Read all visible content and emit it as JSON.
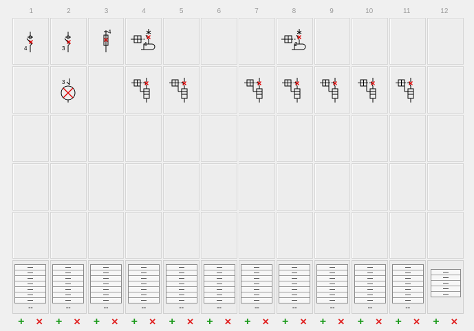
{
  "columns": [
    "1",
    "2",
    "3",
    "4",
    "5",
    "6",
    "7",
    "8",
    "9",
    "10",
    "11",
    "12"
  ],
  "grid": {
    "rows": [
      [
        "switch-4",
        "switch-3",
        "fuse-4",
        "contactor-4",
        "",
        "",
        "",
        "contactor-2",
        "",
        "",
        "",
        ""
      ],
      [
        "",
        "lamp-3",
        "",
        "relay",
        "relay",
        "",
        "relay",
        "relay",
        "relay",
        "relay",
        "relay",
        ""
      ],
      [
        "",
        "",
        "",
        "",
        "",
        "",
        "",
        "",
        "",
        "",
        "",
        ""
      ],
      [
        "",
        "",
        "",
        "",
        "",
        "",
        "",
        "",
        "",
        "",
        "",
        ""
      ],
      [
        "",
        "",
        "",
        "",
        "",
        "",
        "",
        "",
        "",
        "",
        "",
        ""
      ]
    ],
    "labels": {
      "switch-4": "4",
      "switch-3": "3",
      "fuse-4": "4",
      "contactor-4": "4",
      "contactor-2": "2",
      "lamp-3": "3"
    }
  },
  "panel": {
    "terminal_rows": 7,
    "footer": "--",
    "last_rows": 5
  },
  "controls": {
    "add_label": "+",
    "remove_label": "✕"
  },
  "colors": {
    "symbol_black": "#000000",
    "cross_red": "#e00000",
    "add_green": "#1a9a1a",
    "remove_red": "#e02020"
  }
}
